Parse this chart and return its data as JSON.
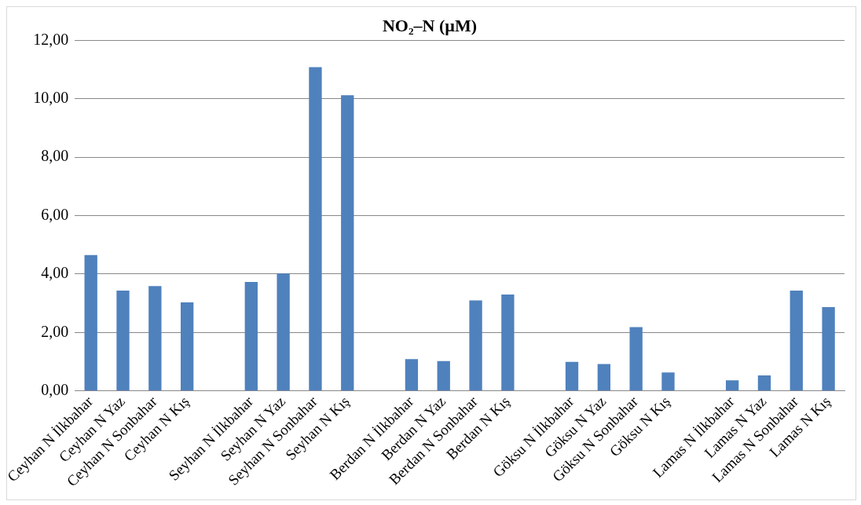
{
  "chart_data": {
    "type": "bar",
    "title": "NO₂–N (µM)",
    "categories": [
      "Ceyhan N İlkbahar",
      "Ceyhan N Yaz",
      "Ceyhan N Sonbahar",
      "Ceyhan N Kış",
      null,
      "Seyhan N İlkbahar",
      "Seyhan N Yaz",
      "Seyhan N Sonbahar",
      "Seyhan N Kış",
      null,
      "Berdan N İlkbahar",
      "Berdan N Yaz",
      "Berdan N Sonbahar",
      "Berdan N Kış",
      null,
      "Göksu N İlkbahar",
      "Göksu N Yaz",
      "Göksu N Sonbahar",
      "Göksu N Kış",
      null,
      "Lamas N İlkbahar",
      "Lamas N Yaz",
      "Lamas N Sonbahar",
      "Lamas N Kış"
    ],
    "values": [
      4.65,
      3.43,
      3.59,
      3.03,
      null,
      3.73,
      4.02,
      11.08,
      10.12,
      null,
      1.09,
      1.02,
      3.1,
      3.3,
      null,
      0.99,
      0.92,
      2.18,
      0.63,
      null,
      0.36,
      0.53,
      3.43,
      2.87
    ],
    "color": "#4f81bd",
    "ylim": [
      0,
      12
    ],
    "yticks": [
      {
        "value": 0,
        "label": "0,00"
      },
      {
        "value": 2,
        "label": "2,00"
      },
      {
        "value": 4,
        "label": "4,00"
      },
      {
        "value": 6,
        "label": "6,00"
      },
      {
        "value": 8,
        "label": "8,00"
      },
      {
        "value": 10,
        "label": "10,00"
      },
      {
        "value": 12,
        "label": "12,00"
      }
    ],
    "grid": "y",
    "legend": false
  }
}
